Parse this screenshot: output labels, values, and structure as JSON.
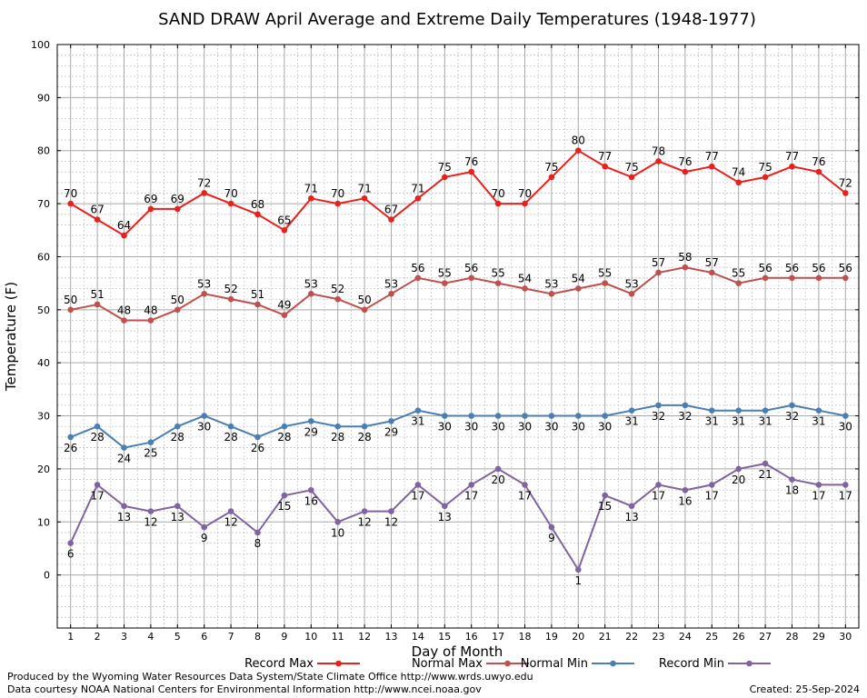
{
  "chart_data": {
    "type": "line",
    "title": "SAND DRAW April Average and Extreme Daily Temperatures (1948-1977)",
    "xlabel": "Day of Month",
    "ylabel": "Temperature (F)",
    "x": [
      1,
      2,
      3,
      4,
      5,
      6,
      7,
      8,
      9,
      10,
      11,
      12,
      13,
      14,
      15,
      16,
      17,
      18,
      19,
      20,
      21,
      22,
      23,
      24,
      25,
      26,
      27,
      28,
      29,
      30
    ],
    "xlim": [
      0.5,
      30.5
    ],
    "ylim": [
      -10,
      100
    ],
    "yticks": [
      0,
      10,
      20,
      30,
      40,
      50,
      60,
      70,
      80,
      90,
      100
    ],
    "grid": true,
    "legend_position": "bottom",
    "series": [
      {
        "name": "Record Max",
        "color": "#e8211d",
        "label_position": "above",
        "values": [
          70,
          67,
          64,
          69,
          69,
          72,
          70,
          68,
          65,
          71,
          70,
          71,
          67,
          71,
          75,
          76,
          70,
          70,
          75,
          80,
          77,
          75,
          78,
          76,
          77,
          74,
          75,
          77,
          76,
          72
        ]
      },
      {
        "name": "Normal Max",
        "color": "#c0504d",
        "label_position": "above",
        "values": [
          50,
          51,
          48,
          48,
          50,
          53,
          52,
          51,
          49,
          53,
          52,
          50,
          53,
          56,
          55,
          56,
          55,
          54,
          53,
          54,
          55,
          53,
          57,
          58,
          57,
          55,
          56,
          56,
          56,
          56
        ]
      },
      {
        "name": "Normal Min",
        "color": "#4a7fb5",
        "label_position": "below",
        "values": [
          26,
          28,
          24,
          25,
          28,
          30,
          28,
          26,
          28,
          29,
          28,
          28,
          29,
          31,
          30,
          30,
          30,
          30,
          30,
          30,
          30,
          31,
          32,
          32,
          31,
          31,
          31,
          32,
          31,
          30
        ]
      },
      {
        "name": "Record Min",
        "color": "#8064a2",
        "label_position": "below",
        "values": [
          6,
          17,
          13,
          12,
          13,
          9,
          12,
          8,
          15,
          16,
          10,
          12,
          12,
          17,
          13,
          17,
          20,
          17,
          9,
          1,
          15,
          13,
          17,
          16,
          17,
          20,
          21,
          18,
          17,
          17
        ]
      }
    ]
  },
  "footer": {
    "line1": "Produced by the Wyoming Water Resources Data System/State Climate Office http://www.wrds.uwyo.edu",
    "line2": "Data courtesy NOAA National Centers for Environmental Information http://www.ncei.noaa.gov",
    "created": "Created:  25-Sep-2024"
  }
}
